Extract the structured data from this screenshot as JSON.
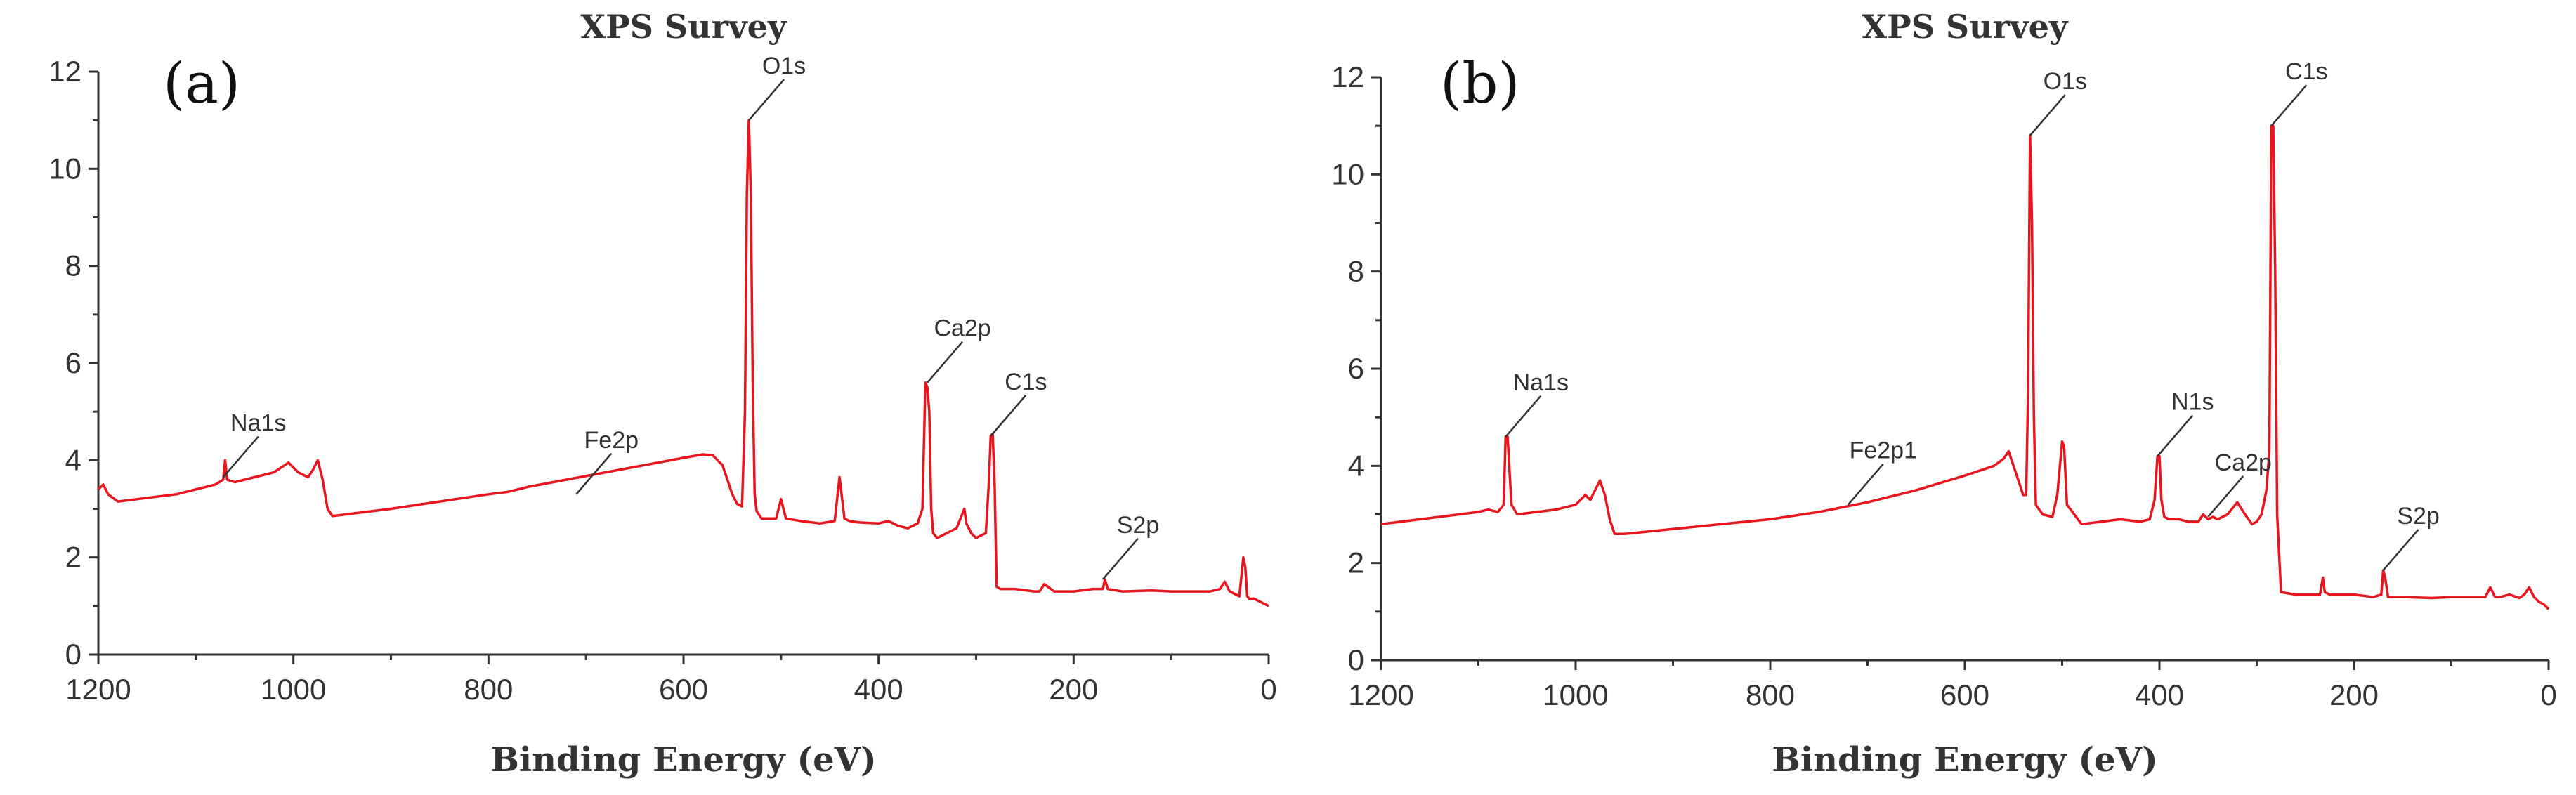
{
  "chart_data": [
    {
      "type": "line",
      "panel_label": "(a)",
      "title": "XPS Survey",
      "xlabel": "Binding Energy (eV)",
      "ylabel": "",
      "xlim": [
        1200,
        0
      ],
      "ylim": [
        0,
        12
      ],
      "x_ticks": [
        "1200",
        "1000",
        "800",
        "600",
        "400",
        "200",
        "0"
      ],
      "y_ticks": [
        "0",
        "2",
        "4",
        "6",
        "8",
        "10",
        "12"
      ],
      "grid": false,
      "series": [
        {
          "color": "#e8141e",
          "x": [
            1200,
            1195,
            1190,
            1180,
            1160,
            1140,
            1120,
            1100,
            1080,
            1072,
            1070,
            1068,
            1060,
            1040,
            1020,
            1005,
            995,
            985,
            980,
            975,
            970,
            965,
            960,
            940,
            900,
            850,
            800,
            780,
            760,
            720,
            680,
            640,
            600,
            580,
            570,
            560,
            555,
            550,
            545,
            540,
            537,
            535,
            533,
            531,
            529,
            527,
            525,
            520,
            510,
            505,
            500,
            495,
            480,
            460,
            445,
            440,
            435,
            430,
            420,
            400,
            390,
            380,
            370,
            360,
            355,
            352,
            350,
            348,
            346,
            344,
            340,
            330,
            320,
            312,
            310,
            305,
            300,
            295,
            290,
            287,
            285,
            283,
            281,
            279,
            275,
            260,
            240,
            235,
            230,
            220,
            200,
            180,
            170,
            168,
            165,
            150,
            120,
            100,
            80,
            60,
            50,
            45,
            40,
            35,
            30,
            28,
            26,
            24,
            22,
            20,
            15,
            10,
            5,
            0
          ],
          "y": [
            3.4,
            3.5,
            3.3,
            3.15,
            3.2,
            3.25,
            3.3,
            3.4,
            3.5,
            3.6,
            4.0,
            3.6,
            3.55,
            3.65,
            3.75,
            3.95,
            3.75,
            3.65,
            3.8,
            4.0,
            3.6,
            3.0,
            2.85,
            2.9,
            3.0,
            3.15,
            3.3,
            3.35,
            3.45,
            3.6,
            3.75,
            3.9,
            4.05,
            4.12,
            4.1,
            3.9,
            3.6,
            3.3,
            3.1,
            3.05,
            5.0,
            9.5,
            11.0,
            9.5,
            5.5,
            3.3,
            2.95,
            2.8,
            2.8,
            2.8,
            3.2,
            2.8,
            2.75,
            2.7,
            2.75,
            3.65,
            2.8,
            2.75,
            2.72,
            2.7,
            2.75,
            2.65,
            2.6,
            2.7,
            3.0,
            5.6,
            5.5,
            5.0,
            3.0,
            2.5,
            2.4,
            2.5,
            2.6,
            3.0,
            2.7,
            2.5,
            2.4,
            2.45,
            2.5,
            3.5,
            4.5,
            4.55,
            3.5,
            1.4,
            1.35,
            1.35,
            1.3,
            1.3,
            1.45,
            1.3,
            1.3,
            1.35,
            1.35,
            1.55,
            1.35,
            1.3,
            1.32,
            1.3,
            1.3,
            1.3,
            1.35,
            1.5,
            1.3,
            1.25,
            1.2,
            1.6,
            2.0,
            1.8,
            1.2,
            1.15,
            1.15,
            1.1,
            1.05,
            1.0
          ]
        }
      ],
      "annotations": [
        {
          "label": "Na1s",
          "x": 1072,
          "y": 3.65
        },
        {
          "label": "Fe2p",
          "x": 710,
          "y": 3.3
        },
        {
          "label": "O1s",
          "x": 533,
          "y": 11.0
        },
        {
          "label": "Ca2p",
          "x": 350,
          "y": 5.6
        },
        {
          "label": "C1s",
          "x": 285,
          "y": 4.5
        },
        {
          "label": "S2p",
          "x": 170,
          "y": 1.55
        }
      ]
    },
    {
      "type": "line",
      "panel_label": "(b)",
      "title": "XPS Survey",
      "xlabel": "Binding Energy (eV)",
      "ylabel": "",
      "xlim": [
        1200,
        0
      ],
      "ylim": [
        0,
        12
      ],
      "x_ticks": [
        "1200",
        "1000",
        "800",
        "600",
        "400",
        "200",
        "0"
      ],
      "y_ticks": [
        "0",
        "2",
        "4",
        "6",
        "8",
        "10",
        "12"
      ],
      "grid": false,
      "series": [
        {
          "color": "#e8141e",
          "x": [
            1200,
            1180,
            1160,
            1140,
            1120,
            1100,
            1090,
            1080,
            1074,
            1072,
            1070,
            1066,
            1060,
            1040,
            1020,
            1000,
            990,
            985,
            980,
            975,
            970,
            965,
            960,
            950,
            900,
            850,
            800,
            750,
            700,
            650,
            600,
            570,
            560,
            555,
            550,
            545,
            540,
            537,
            535,
            533,
            531,
            529,
            527,
            520,
            510,
            505,
            500,
            498,
            495,
            480,
            460,
            440,
            420,
            410,
            405,
            402,
            400,
            398,
            395,
            390,
            380,
            370,
            360,
            355,
            350,
            345,
            340,
            330,
            320,
            312,
            305,
            300,
            295,
            290,
            287,
            285,
            283,
            281,
            279,
            275,
            260,
            240,
            235,
            232,
            230,
            225,
            200,
            180,
            172,
            170,
            168,
            165,
            150,
            120,
            100,
            80,
            65,
            60,
            55,
            50,
            40,
            30,
            25,
            20,
            15,
            10,
            5,
            0
          ],
          "y": [
            2.8,
            2.85,
            2.9,
            2.95,
            3.0,
            3.05,
            3.1,
            3.05,
            3.2,
            4.6,
            4.6,
            3.2,
            3.0,
            3.05,
            3.1,
            3.2,
            3.4,
            3.3,
            3.5,
            3.7,
            3.4,
            2.9,
            2.6,
            2.6,
            2.7,
            2.8,
            2.9,
            3.05,
            3.25,
            3.5,
            3.8,
            4.0,
            4.15,
            4.3,
            4.0,
            3.7,
            3.4,
            3.4,
            5.5,
            10.8,
            9.0,
            5.0,
            3.2,
            3.0,
            2.95,
            3.4,
            4.5,
            4.4,
            3.2,
            2.8,
            2.85,
            2.9,
            2.85,
            2.9,
            3.3,
            4.2,
            4.2,
            3.3,
            2.95,
            2.9,
            2.9,
            2.85,
            2.85,
            3.0,
            2.9,
            2.95,
            2.9,
            3.0,
            3.25,
            3.0,
            2.8,
            2.85,
            3.0,
            3.5,
            4.3,
            11.0,
            11.0,
            8.0,
            3.0,
            1.4,
            1.35,
            1.35,
            1.35,
            1.7,
            1.4,
            1.35,
            1.35,
            1.3,
            1.35,
            1.85,
            1.7,
            1.3,
            1.3,
            1.28,
            1.3,
            1.3,
            1.3,
            1.5,
            1.3,
            1.3,
            1.35,
            1.28,
            1.35,
            1.5,
            1.3,
            1.2,
            1.15,
            1.05
          ]
        }
      ],
      "annotations": [
        {
          "label": "Na1s",
          "x": 1072,
          "y": 4.6
        },
        {
          "label": "Fe2p1",
          "x": 720,
          "y": 3.2
        },
        {
          "label": "O1s",
          "x": 533,
          "y": 10.8
        },
        {
          "label": "N1s",
          "x": 402,
          "y": 4.2
        },
        {
          "label": "Ca2p",
          "x": 350,
          "y": 2.95
        },
        {
          "label": "C1s",
          "x": 285,
          "y": 11.0
        },
        {
          "label": "S2p",
          "x": 170,
          "y": 1.85
        }
      ]
    }
  ]
}
